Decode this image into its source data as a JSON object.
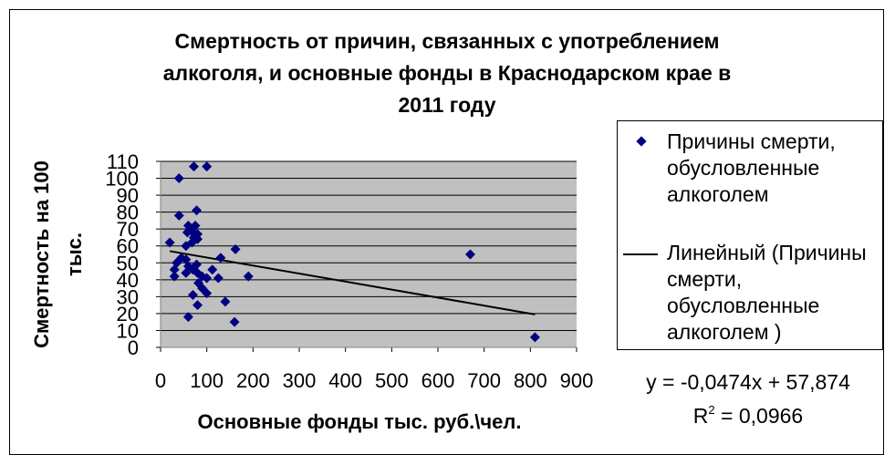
{
  "chart_data": {
    "type": "scatter",
    "title": "Смертность от причин, связанных с употреблением алкоголя, и основные фонды в Краснодарском крае в 2011 году",
    "title_lines": [
      "Смертность от причин, связанных с употреблением",
      "алкоголя, и основные фонды в Краснодарском крае в",
      "2011 году"
    ],
    "xlabel": "Основные фонды тыс. руб.\\чел.",
    "ylabel_lines": [
      "Смертность на 100",
      "тыс."
    ],
    "xlim": [
      0,
      900
    ],
    "ylim": [
      0,
      110
    ],
    "x_ticks": [
      "0",
      "100",
      "200",
      "300",
      "400",
      "500",
      "600",
      "700",
      "800",
      "900"
    ],
    "y_ticks": [
      "0",
      "10",
      "20",
      "30",
      "40",
      "50",
      "60",
      "70",
      "80",
      "90",
      "100",
      "110"
    ],
    "grid": "horizontal",
    "plot_background": "#c0c0c0",
    "marker_color": "#000080",
    "legend_position": "right",
    "series": [
      {
        "name_lines": [
          "Причины смерти,",
          "обусловленные",
          "алкоголем"
        ],
        "points": [
          [
            72,
            107
          ],
          [
            100,
            107
          ],
          [
            40,
            100
          ],
          [
            78,
            81
          ],
          [
            40,
            78
          ],
          [
            60,
            72
          ],
          [
            75,
            72
          ],
          [
            65,
            70
          ],
          [
            58,
            68
          ],
          [
            70,
            68
          ],
          [
            80,
            67
          ],
          [
            72,
            65
          ],
          [
            80,
            64
          ],
          [
            68,
            62
          ],
          [
            20,
            62
          ],
          [
            55,
            60
          ],
          [
            162,
            58
          ],
          [
            45,
            53
          ],
          [
            130,
            53
          ],
          [
            55,
            52
          ],
          [
            35,
            50
          ],
          [
            78,
            49
          ],
          [
            60,
            48
          ],
          [
            30,
            46
          ],
          [
            70,
            46
          ],
          [
            112,
            46
          ],
          [
            80,
            44
          ],
          [
            55,
            44
          ],
          [
            90,
            42
          ],
          [
            30,
            42
          ],
          [
            190,
            42
          ],
          [
            100,
            41
          ],
          [
            125,
            41
          ],
          [
            82,
            38
          ],
          [
            90,
            35
          ],
          [
            70,
            31
          ],
          [
            100,
            32
          ],
          [
            140,
            27
          ],
          [
            80,
            25
          ],
          [
            60,
            18
          ],
          [
            160,
            15
          ],
          [
            670,
            55
          ],
          [
            810,
            6
          ]
        ]
      }
    ],
    "trendline": {
      "name_lines": [
        "Линейный (Причины",
        "смерти,",
        "обусловленные",
        "алкоголем )"
      ],
      "slope": -0.0474,
      "intercept": 57.874,
      "x_range": [
        20,
        810
      ],
      "equation": "y = -0,0474x + 57,874",
      "r2_prefix": "R",
      "r2_sup": "2",
      "r2_value": " = 0,0966"
    }
  }
}
